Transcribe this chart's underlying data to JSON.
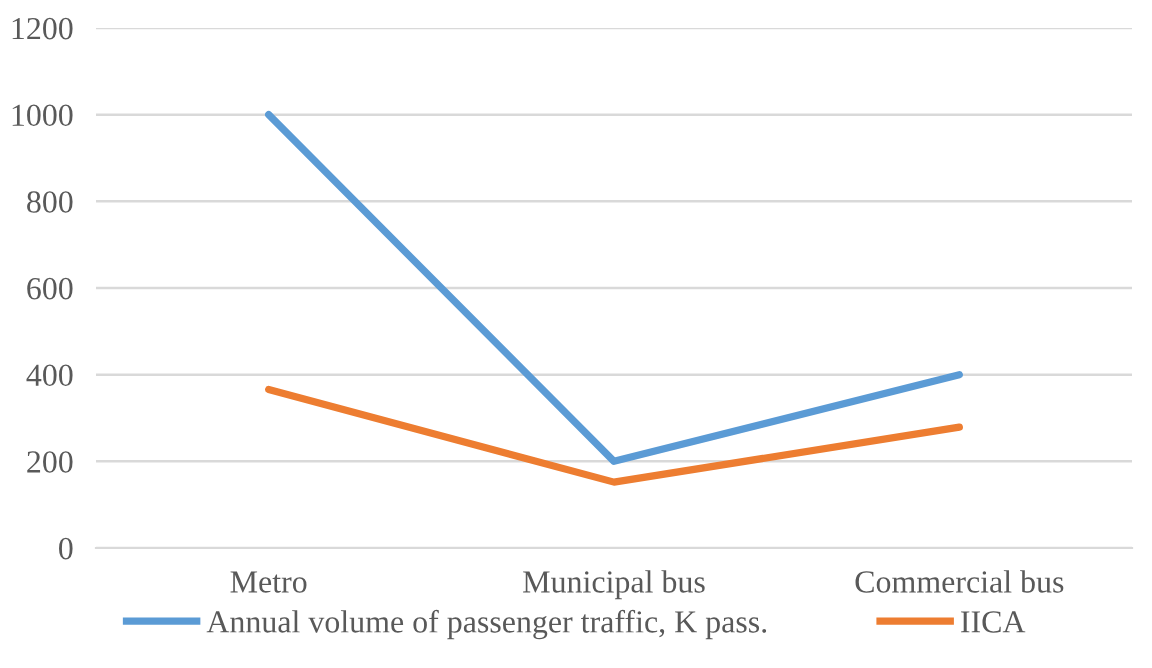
{
  "chart_data": {
    "type": "line",
    "categories": [
      "Metro",
      "Municipal bus",
      "Commercial bus"
    ],
    "series": [
      {
        "name": "Annual volume of passenger traffic, K pass.",
        "color": "#5b9bd5",
        "values": [
          1000,
          200,
          400
        ]
      },
      {
        "name": "IICA",
        "color": "#ed7d31",
        "values": [
          366,
          152,
          279
        ]
      }
    ],
    "ylim": [
      0,
      1200
    ],
    "yticks": [
      0,
      200,
      400,
      600,
      800,
      1000,
      1200
    ],
    "grid": "y",
    "legend": "bottom",
    "marker": "none",
    "line_style": "solid"
  }
}
